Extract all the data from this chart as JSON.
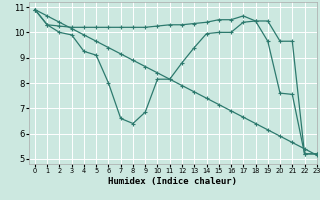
{
  "xlabel": "Humidex (Indice chaleur)",
  "bg_color": "#cce8e0",
  "grid_color": "#ffffff",
  "line_color": "#2d7a6e",
  "xlim": [
    -0.5,
    23
  ],
  "ylim": [
    4.8,
    11.2
  ],
  "yticks": [
    5,
    6,
    7,
    8,
    9,
    10,
    11
  ],
  "xticks": [
    0,
    1,
    2,
    3,
    4,
    5,
    6,
    7,
    8,
    9,
    10,
    11,
    12,
    13,
    14,
    15,
    16,
    17,
    18,
    19,
    20,
    21,
    22,
    23
  ],
  "line1_x": [
    0,
    1,
    2,
    3,
    4,
    5,
    6,
    7,
    8,
    9,
    10,
    11,
    12,
    13,
    14,
    15,
    16,
    17,
    18,
    19,
    20,
    21,
    22,
    23
  ],
  "line1_y": [
    10.9,
    10.3,
    10.25,
    10.2,
    10.2,
    10.2,
    10.2,
    10.2,
    10.2,
    10.2,
    10.25,
    10.3,
    10.3,
    10.35,
    10.4,
    10.5,
    10.5,
    10.65,
    10.45,
    10.45,
    9.65,
    9.65,
    5.2,
    5.2
  ],
  "line2_x": [
    0,
    1,
    2,
    3,
    4,
    5,
    6,
    7,
    8,
    9,
    10,
    11,
    12,
    13,
    14,
    15,
    16,
    17,
    18,
    19,
    20,
    21,
    22,
    23
  ],
  "line2_y": [
    10.9,
    10.3,
    10.0,
    9.9,
    9.25,
    9.1,
    8.0,
    6.6,
    6.4,
    6.85,
    8.15,
    8.15,
    8.8,
    9.4,
    9.95,
    10.0,
    10.0,
    10.4,
    10.45,
    9.65,
    7.6,
    7.55,
    5.2,
    5.2
  ],
  "line3_x": [
    0,
    1,
    2,
    3,
    4,
    5,
    6,
    7,
    8,
    9,
    10,
    11,
    12,
    13,
    14,
    15,
    16,
    17,
    18,
    19,
    20,
    21,
    22,
    23
  ],
  "line3_y": [
    10.9,
    10.65,
    10.4,
    10.15,
    9.9,
    9.65,
    9.4,
    9.15,
    8.9,
    8.65,
    8.4,
    8.15,
    7.9,
    7.65,
    7.4,
    7.15,
    6.9,
    6.65,
    6.4,
    6.15,
    5.9,
    5.65,
    5.4,
    5.15
  ]
}
